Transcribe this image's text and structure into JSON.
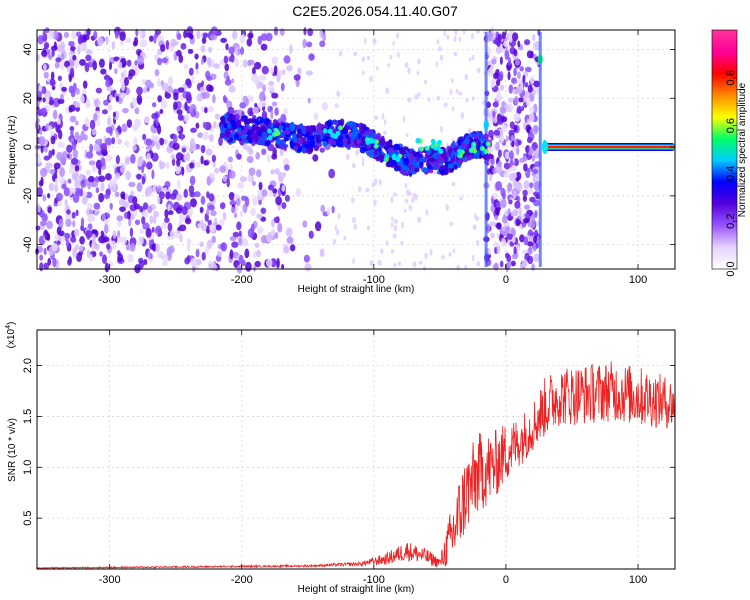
{
  "chart_data": [
    {
      "type": "heatmap",
      "title": "C2E5.2026.054.11.40.G07",
      "xlabel": "Height of straight line (km)",
      "ylabel": "Frequency (Hz)",
      "xlim": [
        -355,
        128
      ],
      "ylim": [
        -50,
        48
      ],
      "x_ticks": [
        -300,
        -200,
        -100,
        0,
        100
      ],
      "x_tick_labels": [
        "-300",
        "-200",
        "-100",
        "0",
        "100"
      ],
      "y_ticks": [
        -40,
        -20,
        0,
        20,
        40
      ],
      "y_tick_labels": [
        "-40",
        "-20",
        "0",
        "20",
        "40"
      ],
      "colorbar": {
        "label": "Normalized spectral amplitude",
        "range": [
          0,
          1
        ],
        "ticks": [
          0.0,
          0.2,
          0.4,
          0.6,
          0.8
        ],
        "tick_labels": [
          "0.0",
          "0.2",
          "0.4",
          "0.6",
          "0.8"
        ],
        "colors": [
          "#ffffff",
          "#e6d2ff",
          "#9955ff",
          "#5500dd",
          "#0000ff",
          "#00ccff",
          "#00ff66",
          "#ffff00",
          "#ff8800",
          "#ff0000",
          "#ff0099",
          "#ff3399"
        ]
      },
      "grid": true,
      "features": {
        "noise_region_x": [
          -355,
          -130
        ],
        "noise_gap_x": [
          -165,
          -130
        ],
        "descending_trace": [
          [
            -215,
            8
          ],
          [
            -180,
            6
          ],
          [
            -150,
            3
          ],
          [
            -130,
            6
          ],
          [
            -110,
            4
          ],
          [
            -90,
            -2
          ],
          [
            -75,
            -6
          ],
          [
            -60,
            -5
          ],
          [
            -45,
            -6
          ],
          [
            -35,
            -2
          ],
          [
            -25,
            1
          ],
          [
            -15,
            1
          ]
        ],
        "bright_segments": [
          [
            -175,
            5
          ],
          [
            -130,
            6
          ],
          [
            -100,
            2
          ],
          [
            -85,
            -4
          ],
          [
            -62,
            1
          ],
          [
            -50,
            0
          ],
          [
            -30,
            -2
          ],
          [
            -20,
            0
          ]
        ],
        "vertical_band_x": [
          -15,
          25
        ],
        "tone_line": {
          "x": [
            28,
            128
          ],
          "y": 0
        }
      }
    },
    {
      "type": "line",
      "xlabel": "Height of straight line (km)",
      "ylabel": "SNR (10 * v/v)",
      "y_scale_note": "(x10",
      "y_scale_exp": "4",
      "y_scale_close": ")",
      "xlim": [
        -355,
        128
      ],
      "ylim": [
        0,
        2.35
      ],
      "x_ticks": [
        -300,
        -200,
        -100,
        0,
        100
      ],
      "x_tick_labels": [
        "-300",
        "-200",
        "-100",
        "0",
        "100"
      ],
      "y_ticks": [
        0.5,
        1.0,
        1.5,
        2.0
      ],
      "y_tick_labels": [
        "0.5",
        "1.0",
        "1.5",
        "2.0"
      ],
      "grid": true,
      "series": [
        {
          "color": "#ee2222",
          "envelope": {
            "x": [
              -355,
              -250,
              -150,
              -110,
              -90,
              -75,
              -60,
              -50,
              -40,
              -30,
              -20,
              -10,
              0,
              10,
              20,
              30,
              40,
              60,
              80,
              100,
              128
            ],
            "y": [
              0.01,
              0.02,
              0.03,
              0.05,
              0.1,
              0.18,
              0.12,
              0.06,
              0.35,
              0.75,
              0.95,
              1.0,
              1.15,
              1.25,
              1.4,
              1.6,
              1.7,
              1.72,
              1.75,
              1.7,
              1.62
            ]
          },
          "noise_amplitude": [
            0.005,
            0.008,
            0.01,
            0.02,
            0.06,
            0.1,
            0.08,
            0.05,
            0.35,
            0.4,
            0.4,
            0.35,
            0.3,
            0.25,
            0.25,
            0.3,
            0.3,
            0.3,
            0.3,
            0.3,
            0.25
          ]
        }
      ]
    }
  ]
}
